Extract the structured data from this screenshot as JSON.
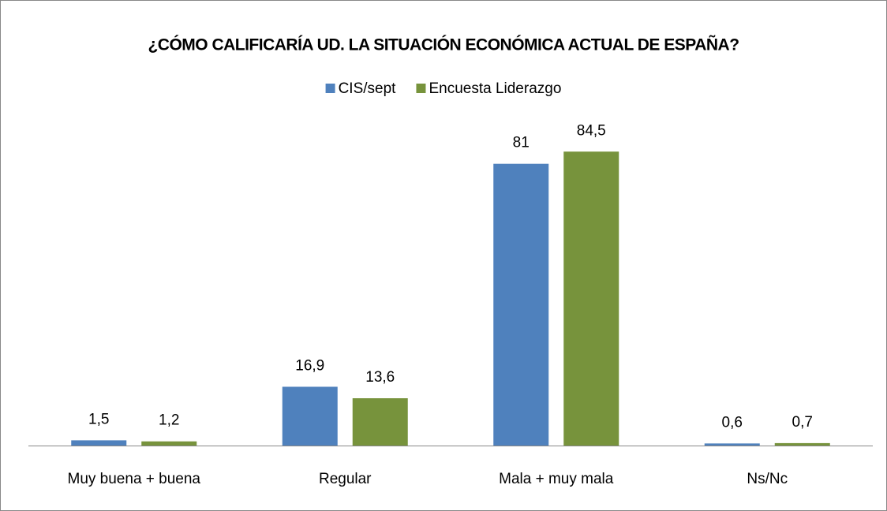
{
  "chart_data": {
    "type": "bar",
    "title": "¿CÓMO CALIFICARÍA UD. LA SITUACIÓN ECONÓMICA ACTUAL DE ESPAÑA?",
    "categories": [
      "Muy buena + buena",
      "Regular",
      "Mala + muy mala",
      "Ns/Nc"
    ],
    "series": [
      {
        "name": "CIS/sept",
        "color": "#4f81bd",
        "values": [
          1.5,
          16.9,
          81,
          0.6
        ],
        "value_labels": [
          "1,5",
          "16,9",
          "81",
          "0,6"
        ]
      },
      {
        "name": "Encuesta Liderazgo",
        "color": "#77933c",
        "values": [
          1.2,
          13.6,
          84.5,
          0.7
        ],
        "value_labels": [
          "1,2",
          "13,6",
          "84,5",
          "0,7"
        ]
      }
    ],
    "ylim": [
      0,
      90
    ],
    "legend": "top"
  }
}
